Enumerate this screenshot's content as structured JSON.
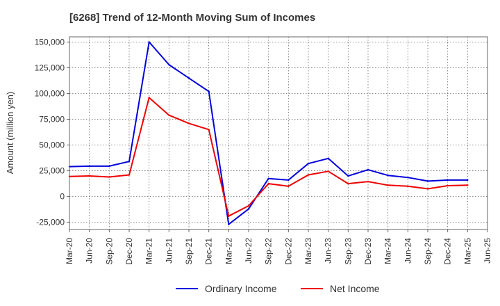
{
  "chart_data": {
    "type": "line",
    "title": "[6268]  Trend of 12-Month Moving Sum of Incomes",
    "xlabel": "",
    "ylabel": "Amount (million yen)",
    "ylim": [
      -32000,
      155000
    ],
    "yticks": [
      -25000,
      0,
      25000,
      50000,
      75000,
      100000,
      125000,
      150000
    ],
    "ytick_labels": [
      "-25,000",
      "0",
      "25,000",
      "50,000",
      "75,000",
      "100,000",
      "125,000",
      "150,000"
    ],
    "categories": [
      "Mar-20",
      "Jun-20",
      "Sep-20",
      "Dec-20",
      "Mar-21",
      "Jun-21",
      "Sep-21",
      "Dec-21",
      "Mar-22",
      "Jun-22",
      "Sep-22",
      "Dec-22",
      "Mar-23",
      "Jun-23",
      "Sep-23",
      "Dec-23",
      "Mar-24",
      "Jun-24",
      "Sep-24",
      "Dec-24",
      "Mar-25",
      "Jun-25"
    ],
    "grid": true,
    "legend_position": "bottom",
    "series": [
      {
        "name": "Ordinary Income",
        "color": "#0000dd",
        "values": [
          29000,
          29500,
          29500,
          34000,
          150000,
          128000,
          115000,
          102000,
          -27000,
          -12000,
          17500,
          16000,
          32000,
          37000,
          20000,
          26000,
          20500,
          18500,
          15000,
          16000,
          16000,
          null
        ]
      },
      {
        "name": "Net Income",
        "color": "#ee0000",
        "values": [
          19500,
          20000,
          19000,
          21000,
          96000,
          79000,
          71000,
          65000,
          -19000,
          -9000,
          12500,
          10000,
          21000,
          24500,
          12500,
          14500,
          11000,
          10000,
          7500,
          10500,
          11000,
          null
        ]
      }
    ]
  }
}
